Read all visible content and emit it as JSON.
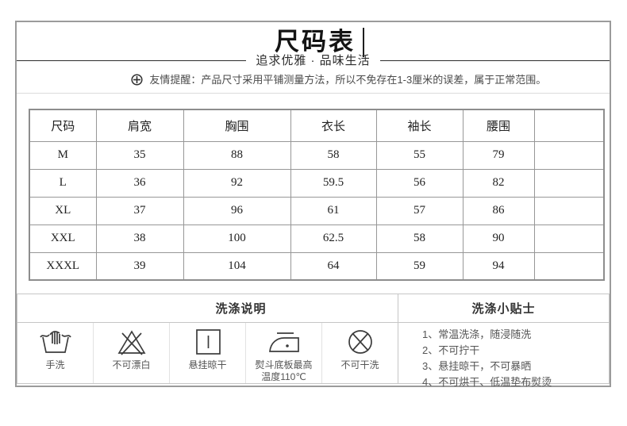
{
  "header": {
    "title": "尺码表",
    "subtitle": "追求优雅 · 品味生活",
    "reminder": "友情提醒：产品尺寸采用平铺测量方法，所以不免存在1-3厘米的误差，属于正常范围。"
  },
  "size_table": {
    "columns": [
      "尺码",
      "肩宽",
      "胸围",
      "衣长",
      "袖长",
      "腰围",
      ""
    ],
    "rows": [
      [
        "M",
        "35",
        "88",
        "58",
        "55",
        "79",
        ""
      ],
      [
        "L",
        "36",
        "92",
        "59.5",
        "56",
        "82",
        ""
      ],
      [
        "XL",
        "37",
        "96",
        "61",
        "57",
        "86",
        ""
      ],
      [
        "XXL",
        "38",
        "100",
        "62.5",
        "58",
        "90",
        ""
      ],
      [
        "XXXL",
        "39",
        "104",
        "64",
        "59",
        "94",
        ""
      ]
    ]
  },
  "washing": {
    "instructions_title": "洗涤说明",
    "tips_title": "洗涤小贴士",
    "symbols": [
      {
        "icon": "hand-wash-icon",
        "label": "手洗"
      },
      {
        "icon": "no-bleach-icon",
        "label": "不可漂白"
      },
      {
        "icon": "drip-dry-icon",
        "label": "悬挂晾干"
      },
      {
        "icon": "iron-max-110-icon",
        "label": "熨斗底板最高\n温度110℃"
      },
      {
        "icon": "no-dry-clean-icon",
        "label": "不可干洗"
      }
    ],
    "tips": [
      "1、常温洗涤，随浸随洗",
      "2、不可拧干",
      "3、悬挂晾干，不可暴晒",
      "4、不可烘干、低温垫布熨烫"
    ]
  },
  "colors": {
    "frame_border": "#9b9b9b",
    "table_border": "#8f8f8f",
    "heading_text": "#141414",
    "body_text": "#222222",
    "muted_text": "#555555",
    "light_border": "#c6c6c6"
  }
}
